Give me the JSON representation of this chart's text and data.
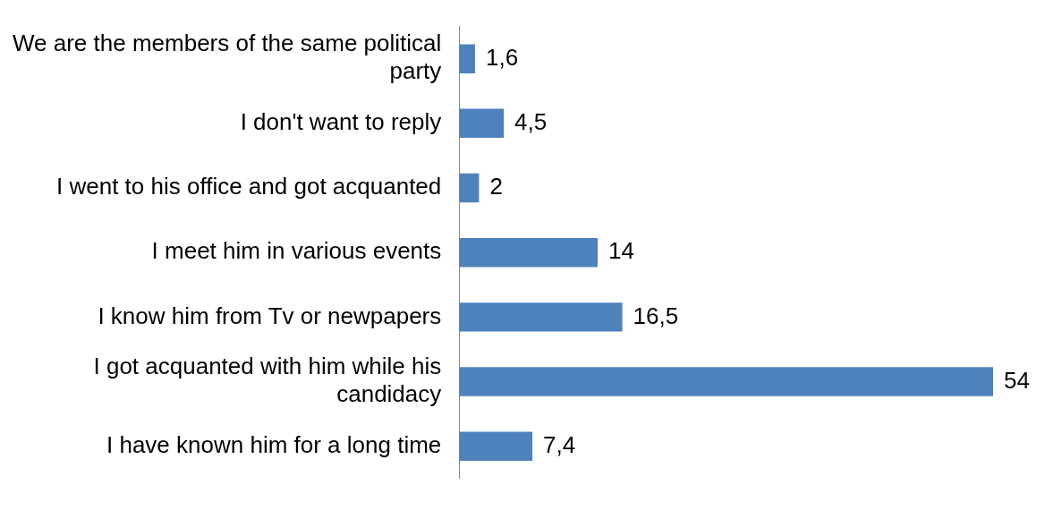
{
  "chart_data": {
    "type": "bar",
    "orientation": "horizontal",
    "categories": [
      "We are the members of the same political party",
      "I don't want to reply",
      "I went to his office and got acquanted",
      "I meet him in various events",
      "I know him from Tv or newpapers",
      "I got acquanted with him while his candidacy",
      "I have known him for a long time"
    ],
    "values": [
      1.6,
      4.5,
      2,
      14,
      16.5,
      54,
      7.4
    ],
    "value_labels": [
      "1,6",
      "4,5",
      "2",
      "14",
      "16,5",
      "54",
      "7,4"
    ],
    "color": "#4f81bd",
    "legend": false,
    "tick_labels": "y"
  }
}
